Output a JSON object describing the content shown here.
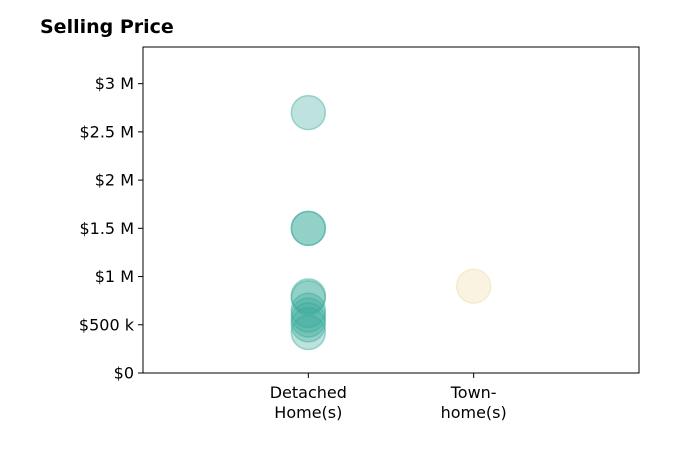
{
  "chart_data": {
    "type": "scatter",
    "title": "Selling Price",
    "categories": [
      "Detached\nHome(s)",
      "Town-\nhome(s)"
    ],
    "y_ticks": [
      {
        "value": 0,
        "label": "$0"
      },
      {
        "value": 500000,
        "label": "$500 k"
      },
      {
        "value": 1000000,
        "label": "$1 M"
      },
      {
        "value": 1500000,
        "label": "$1.5 M"
      },
      {
        "value": 2000000,
        "label": "$2 M"
      },
      {
        "value": 2500000,
        "label": "$2.5 M"
      },
      {
        "value": 3000000,
        "label": "$3 M"
      }
    ],
    "ylim": [
      0,
      3380000
    ],
    "xlim": [
      -1,
      2
    ],
    "grid": false,
    "series": [
      {
        "category": "Detached\nHome(s)",
        "color": "#3aaa9a",
        "values": [
          2700000,
          1500000,
          1500000,
          800000,
          780000,
          650000,
          600000,
          550000,
          500000,
          420000
        ]
      },
      {
        "category": "Town-\nhome(s)",
        "color": "#f0dca8",
        "values": [
          900000
        ]
      }
    ]
  }
}
